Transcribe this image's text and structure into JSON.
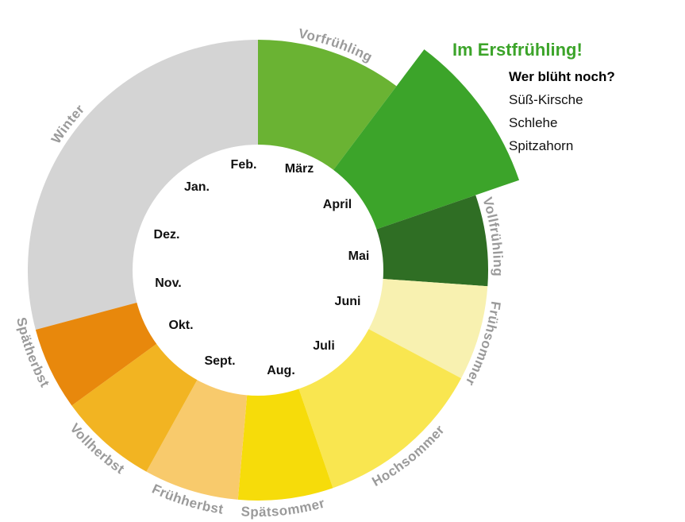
{
  "segments": [
    {
      "label": "Winter",
      "color": "#d4d4d4"
    },
    {
      "label": "Vorfrühling",
      "color": "#6ab333"
    },
    {
      "label": "Erstfrühling",
      "color": "#3ca42a"
    },
    {
      "label": "Vollfrühling",
      "color": "#2f6e24"
    },
    {
      "label": "Frühsommer",
      "color": "#f8f1b0"
    },
    {
      "label": "Hochsommer",
      "color": "#f9e650"
    },
    {
      "label": "Spätsommer",
      "color": "#f6dc0a"
    },
    {
      "label": "Frühherbst",
      "color": "#f8ca6c"
    },
    {
      "label": "Vollherbst",
      "color": "#f2b422"
    },
    {
      "label": "Spätherbst",
      "color": "#e8880c"
    }
  ],
  "months": [
    "Jan.",
    "Feb.",
    "März",
    "April",
    "Mai",
    "Juni",
    "Juli",
    "Aug.",
    "Sept.",
    "Okt.",
    "Nov.",
    "Dez."
  ],
  "callout": {
    "title": "Im Erstfrühling!",
    "question": "Wer blüht noch?",
    "plants": [
      "Süß-Kirsche",
      "Schlehe",
      "Spitzahorn"
    ]
  }
}
